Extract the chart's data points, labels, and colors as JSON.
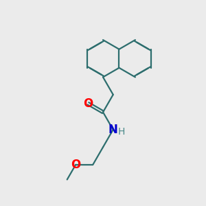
{
  "bg_color": "#ebebeb",
  "bond_color": "#2d6e6e",
  "bond_width": 1.6,
  "atom_colors": {
    "O_carbonyl": "#ff0000",
    "O_ether": "#ff0000",
    "N": "#0000cd",
    "H": "#4a8a8a"
  },
  "font_size_large": 12,
  "font_size_small": 10,
  "fig_size": [
    3.0,
    3.0
  ],
  "dpi": 100,
  "xlim": [
    0,
    10
  ],
  "ylim": [
    0,
    10
  ]
}
